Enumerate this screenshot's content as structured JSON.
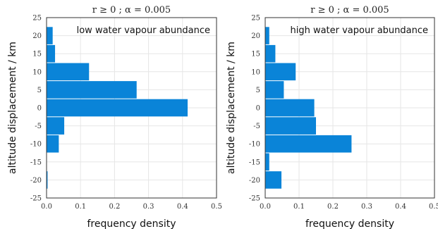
{
  "chart_data": [
    {
      "type": "bar",
      "orientation": "horizontal",
      "title": "r ≥ 0 ; α = 0.005",
      "annotation": "low water vapour abundance",
      "xlabel": "frequency density",
      "ylabel": "altitude displacement  / km",
      "xlim": [
        0.0,
        0.5
      ],
      "ylim": [
        -25,
        25
      ],
      "xticks": [
        "0.0",
        "0.1",
        "0.2",
        "0.3",
        "0.4",
        "0.5"
      ],
      "yticks": [
        "25",
        "20",
        "15",
        "10",
        "5",
        "0",
        "-5",
        "-10",
        "-15",
        "-20",
        "-25"
      ],
      "grid": true,
      "bar_color": "#0a84d8",
      "bins": [
        {
          "low": 17.5,
          "high": 22.5,
          "value": 0.018
        },
        {
          "low": 12.5,
          "high": 17.5,
          "value": 0.025
        },
        {
          "low": 7.5,
          "high": 12.5,
          "value": 0.125
        },
        {
          "low": 2.5,
          "high": 7.5,
          "value": 0.265
        },
        {
          "low": -2.5,
          "high": 2.5,
          "value": 0.415
        },
        {
          "low": -7.5,
          "high": -2.5,
          "value": 0.052
        },
        {
          "low": -12.5,
          "high": -7.5,
          "value": 0.036
        },
        {
          "low": -22.5,
          "high": -17.5,
          "value": 0.003
        }
      ]
    },
    {
      "type": "bar",
      "orientation": "horizontal",
      "title": "r ≥ 0 ; α = 0.005",
      "annotation": "high water vapour abundance",
      "xlabel": "frequency density",
      "ylabel": "altitude displacement  / km",
      "xlim": [
        0.0,
        0.5
      ],
      "ylim": [
        -25,
        25
      ],
      "xticks": [
        "0.0",
        "0.1",
        "0.2",
        "0.3",
        "0.4",
        "0.5"
      ],
      "yticks": [
        "25",
        "20",
        "15",
        "10",
        "5",
        "0",
        "-5",
        "-10",
        "-15",
        "-20",
        "-25"
      ],
      "grid": true,
      "bar_color": "#0a84d8",
      "bins": [
        {
          "low": 17.5,
          "high": 22.5,
          "value": 0.012
        },
        {
          "low": 12.5,
          "high": 17.5,
          "value": 0.03
        },
        {
          "low": 7.5,
          "high": 12.5,
          "value": 0.09
        },
        {
          "low": 2.5,
          "high": 7.5,
          "value": 0.055
        },
        {
          "low": -2.5,
          "high": 2.5,
          "value": 0.145
        },
        {
          "low": -7.5,
          "high": -2.5,
          "value": 0.15
        },
        {
          "low": -12.5,
          "high": -7.5,
          "value": 0.255
        },
        {
          "low": -17.5,
          "high": -12.5,
          "value": 0.012
        },
        {
          "low": -22.5,
          "high": -17.5,
          "value": 0.048
        }
      ]
    }
  ]
}
